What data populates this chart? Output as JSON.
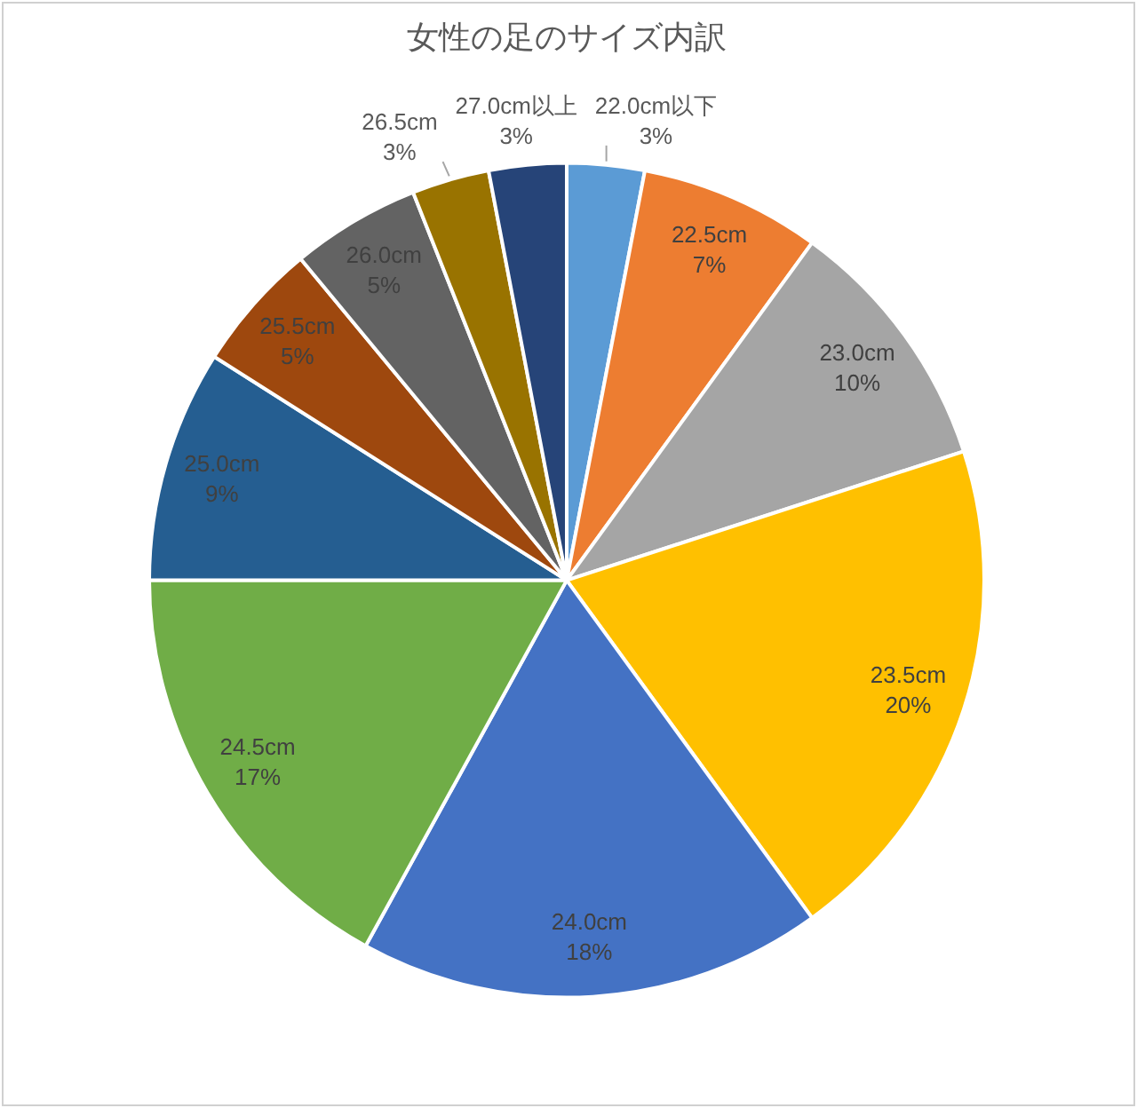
{
  "chart_data": {
    "type": "pie",
    "title": "女性の足のサイズ内訳",
    "categories": [
      "22.0cm以下",
      "22.5cm",
      "23.0cm",
      "23.5cm",
      "24.0cm",
      "24.5cm",
      "25.0cm",
      "25.5cm",
      "26.0cm",
      "26.5cm",
      "27.0cm以上"
    ],
    "values": [
      3,
      7,
      10,
      20,
      18,
      17,
      9,
      5,
      5,
      3,
      3
    ],
    "value_labels": [
      "3%",
      "7%",
      "10%",
      "20%",
      "18%",
      "17%",
      "9%",
      "5%",
      "5%",
      "3%",
      "3%"
    ],
    "colors": [
      "#5b9bd5",
      "#ed7d31",
      "#a5a5a5",
      "#ffc000",
      "#4472c4",
      "#70ad47",
      "#255e91",
      "#9e480e",
      "#636363",
      "#997300",
      "#264478"
    ],
    "legend": false
  }
}
